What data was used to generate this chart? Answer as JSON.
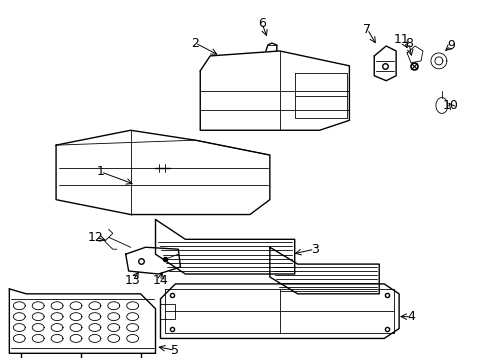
{
  "background_color": "#ffffff",
  "figsize": [
    4.89,
    3.6
  ],
  "dpi": 100,
  "line_color": "#000000",
  "text_color": "#000000",
  "font_size": 9
}
